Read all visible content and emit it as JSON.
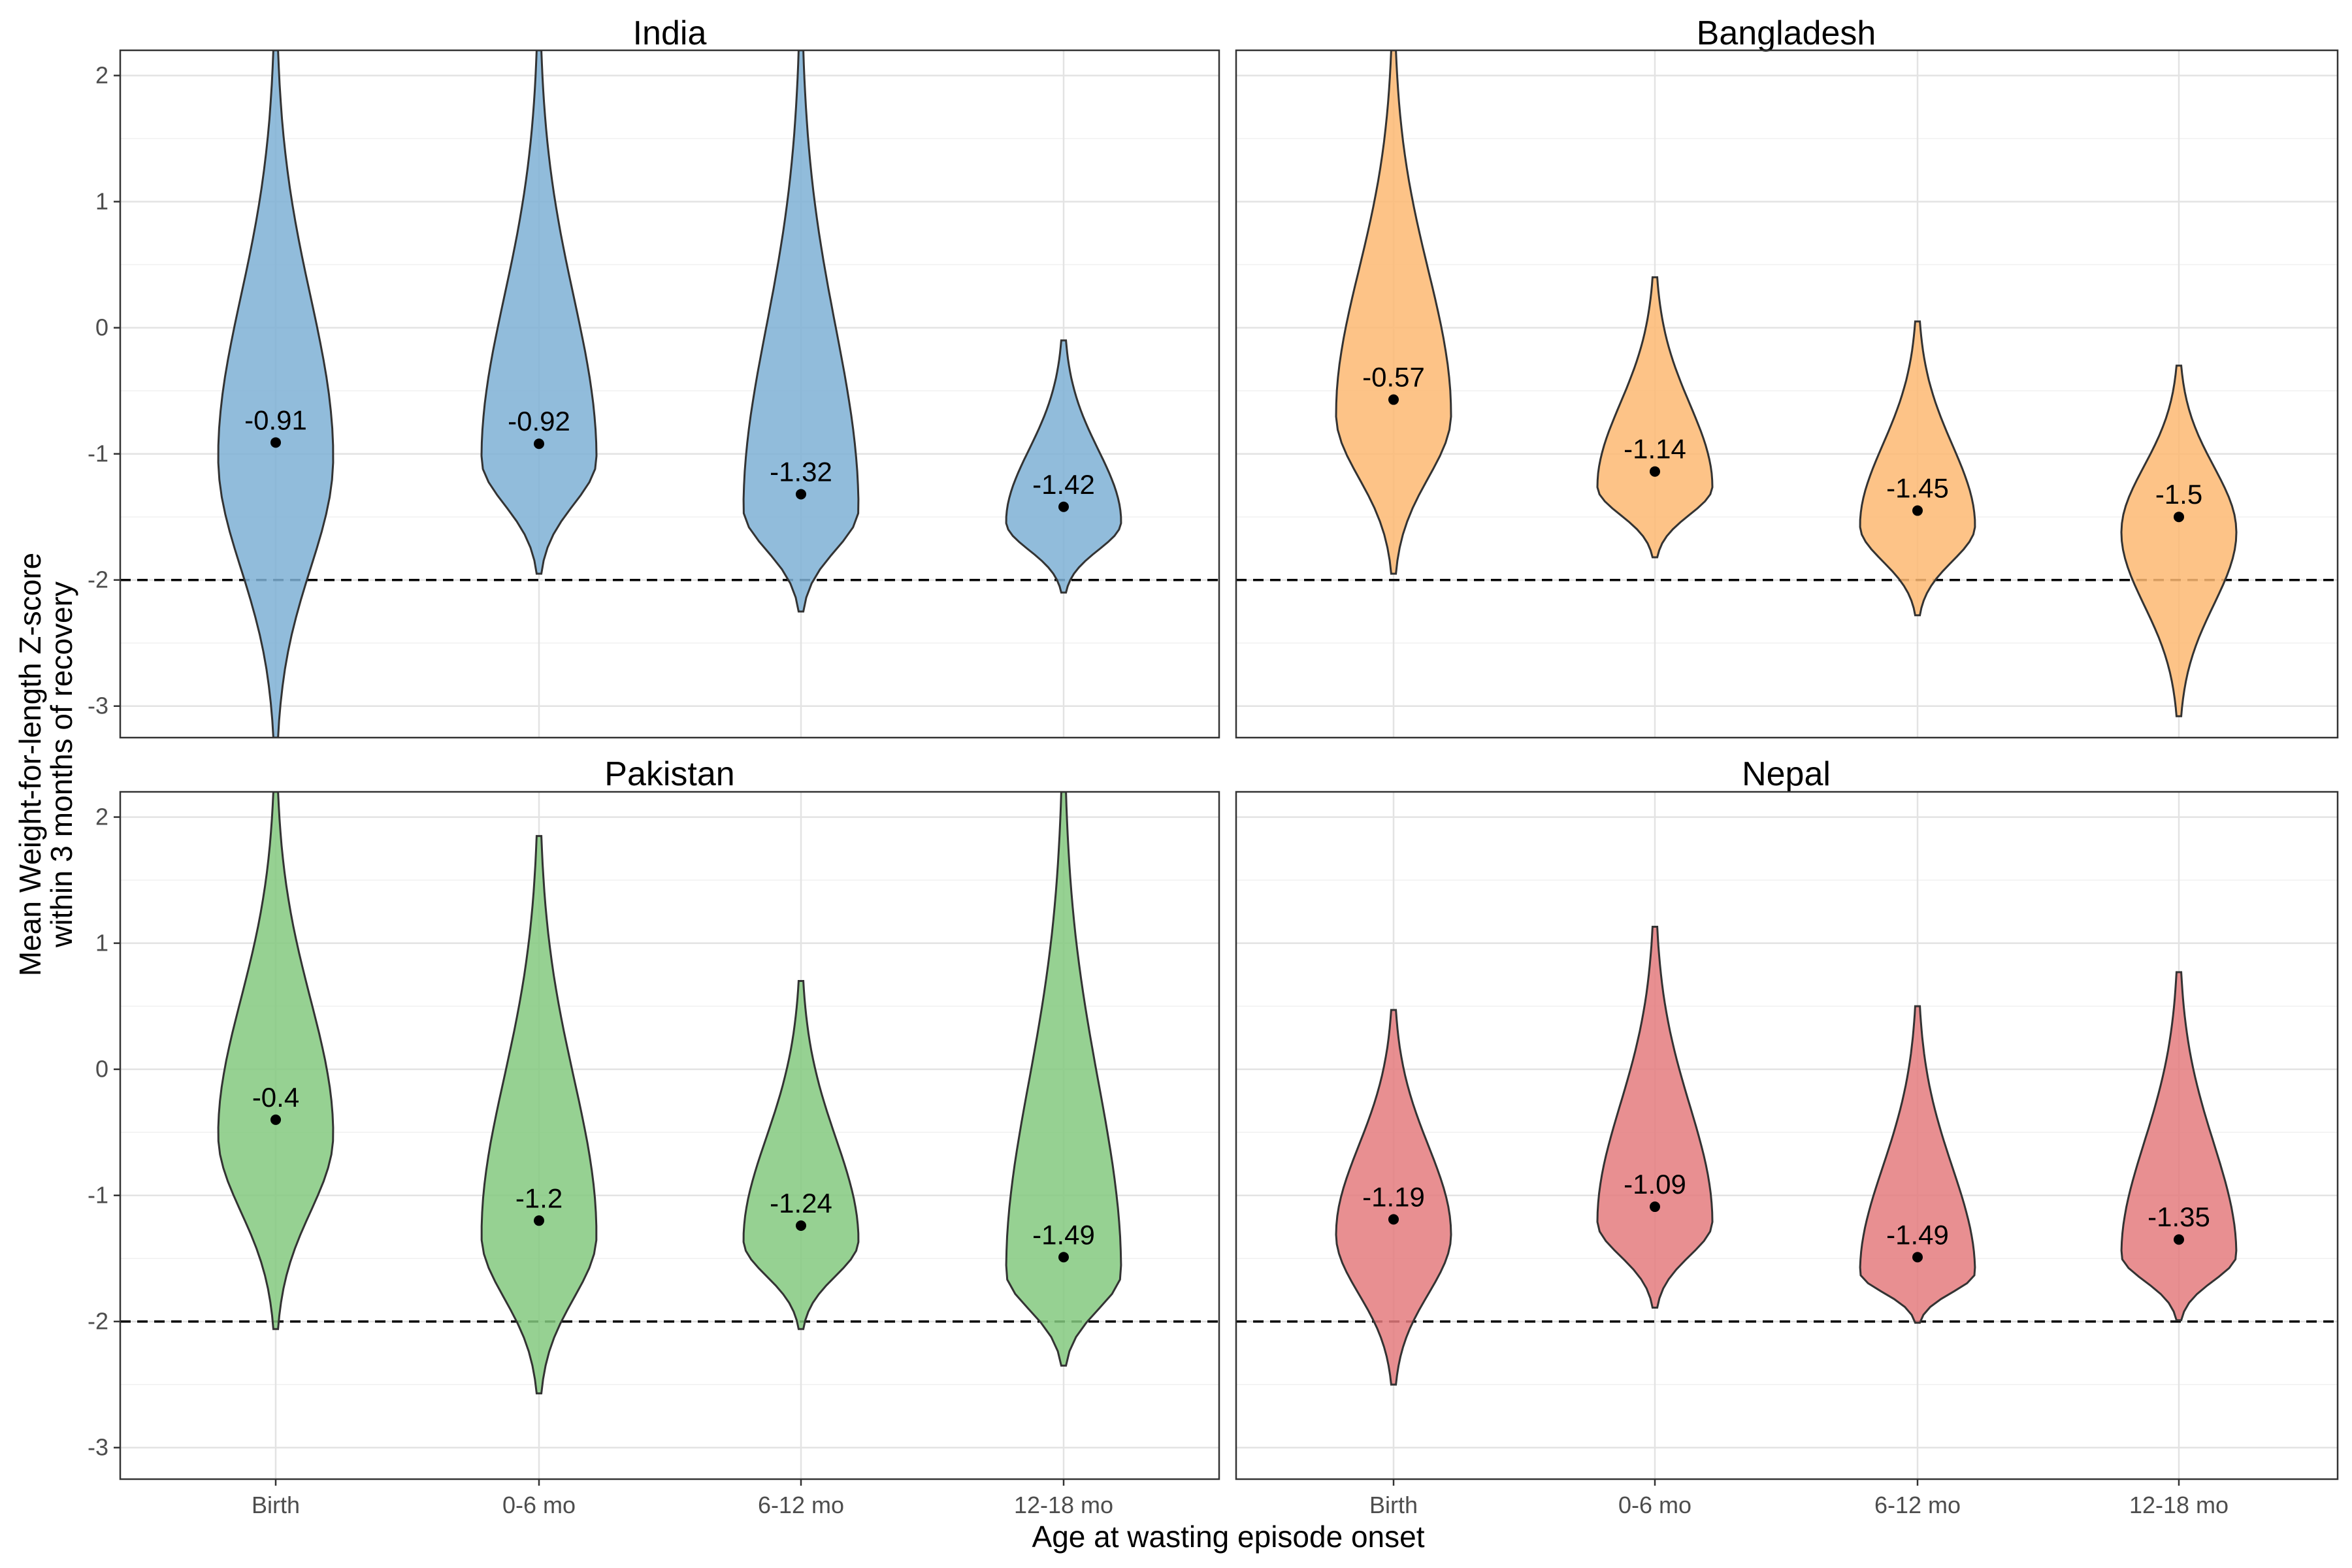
{
  "chart_data": {
    "type": "violin",
    "xlabel": "Age at wasting episode onset",
    "ylabel_lines": [
      "Mean Weight-for-length Z-score",
      "within 3 months of recovery"
    ],
    "categories": [
      "Birth",
      "0-6 mo",
      "6-12 mo",
      "12-18 mo"
    ],
    "ylim": [
      -3.25,
      2.2
    ],
    "y_ticks": [
      -3,
      -2,
      -1,
      0,
      1,
      2
    ],
    "y_tick_labels": [
      "-3",
      "-2",
      "-1",
      "0",
      "1",
      "2"
    ],
    "reference_line": -2,
    "grid": true,
    "panels": [
      {
        "name": "India",
        "color": "#7EB0D5",
        "means": [
          -0.91,
          -0.92,
          -1.32,
          -1.42
        ],
        "labels": [
          "-0.91",
          "-0.92",
          "-1.32",
          "-1.42"
        ],
        "ranges": [
          [
            -3.25,
            2.2
          ],
          [
            -1.95,
            2.2
          ],
          [
            -2.25,
            2.2
          ],
          [
            -2.1,
            -0.1
          ]
        ]
      },
      {
        "name": "Bangladesh",
        "color": "#FDB872",
        "means": [
          -0.57,
          -1.14,
          -1.45,
          -1.5
        ],
        "labels": [
          "-0.57",
          "-1.14",
          "-1.45",
          "-1.5"
        ],
        "ranges": [
          [
            -1.95,
            2.2
          ],
          [
            -1.82,
            0.4
          ],
          [
            -2.28,
            0.05
          ],
          [
            -3.08,
            -0.3
          ]
        ]
      },
      {
        "name": "Pakistan",
        "color": "#84C97F",
        "means": [
          -0.4,
          -1.2,
          -1.24,
          -1.49
        ],
        "labels": [
          "-0.4",
          "-1.2",
          "-1.24",
          "-1.49"
        ],
        "ranges": [
          [
            -2.06,
            2.2
          ],
          [
            -2.57,
            1.85
          ],
          [
            -2.06,
            0.7
          ],
          [
            -2.35,
            2.2
          ]
        ]
      },
      {
        "name": "Nepal",
        "color": "#E47B7E",
        "means": [
          -1.19,
          -1.09,
          -1.49,
          -1.35
        ],
        "labels": [
          "-1.19",
          "-1.09",
          "-1.49",
          "-1.35"
        ],
        "ranges": [
          [
            -2.5,
            0.47
          ],
          [
            -1.89,
            1.13
          ],
          [
            -2.01,
            0.5
          ],
          [
            -1.99,
            0.77
          ]
        ]
      }
    ]
  }
}
